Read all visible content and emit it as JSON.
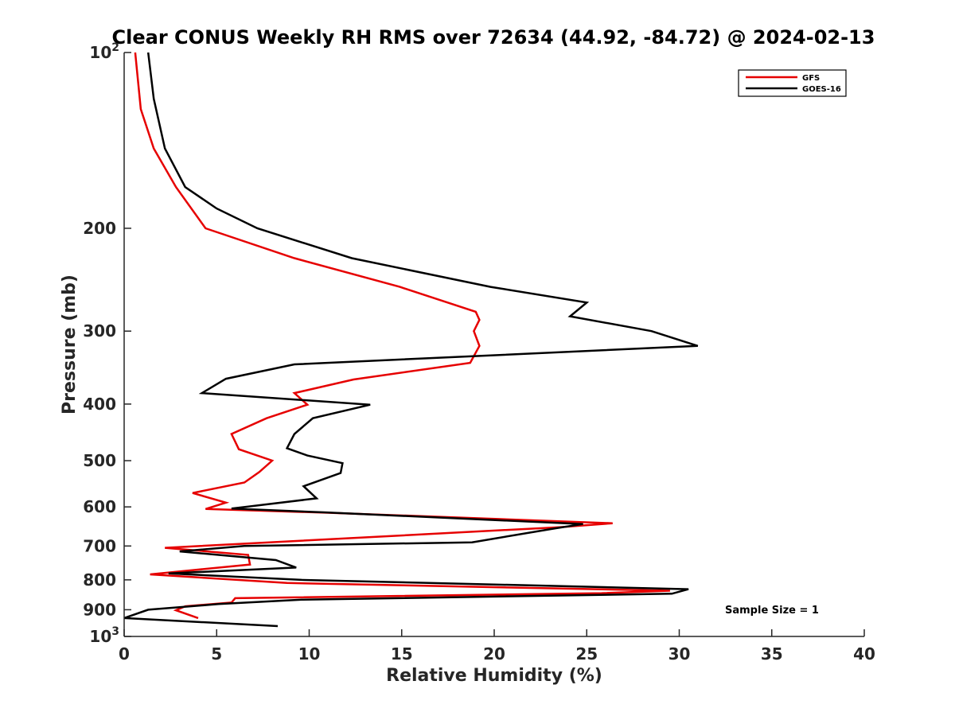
{
  "chart_data": {
    "type": "line",
    "title": "Clear CONUS Weekly RH RMS over 72634 (44.92, -84.72) @ 2024-02-13",
    "xlabel": "Relative Humidity (%)",
    "ylabel": "Pressure (mb)",
    "xlim": [
      0,
      40
    ],
    "ylim": [
      100,
      1000
    ],
    "yscale": "log",
    "y_reversed": true,
    "grid": false,
    "legend_position": "top-right",
    "x_ticks": [
      "0",
      "5",
      "10",
      "15",
      "20",
      "25",
      "30",
      "35",
      "40"
    ],
    "y_ticks": [
      {
        "value": 100,
        "base": "10",
        "exp": "2"
      },
      {
        "value": 200,
        "label": "200"
      },
      {
        "value": 300,
        "label": "300"
      },
      {
        "value": 400,
        "label": "400"
      },
      {
        "value": 500,
        "label": "500"
      },
      {
        "value": 600,
        "label": "600"
      },
      {
        "value": 700,
        "label": "700"
      },
      {
        "value": 800,
        "label": "800"
      },
      {
        "value": 900,
        "label": "900"
      },
      {
        "value": 1000,
        "base": "10",
        "exp": "3"
      }
    ],
    "annotation": "Sample Size = 1",
    "series": [
      {
        "name": "GFS",
        "color": "#e60000",
        "points": [
          [
            0.6,
            100
          ],
          [
            0.9,
            125
          ],
          [
            1.6,
            146
          ],
          [
            2.8,
            170
          ],
          [
            4.4,
            200
          ],
          [
            9.2,
            225
          ],
          [
            14.9,
            252
          ],
          [
            19.0,
            278
          ],
          [
            19.2,
            287
          ],
          [
            18.9,
            300
          ],
          [
            19.2,
            318
          ],
          [
            18.7,
            340
          ],
          [
            12.4,
            363
          ],
          [
            9.2,
            383
          ],
          [
            9.9,
            401
          ],
          [
            7.7,
            423
          ],
          [
            5.8,
            450
          ],
          [
            6.2,
            478
          ],
          [
            8.0,
            500
          ],
          [
            7.3,
            523
          ],
          [
            6.5,
            545
          ],
          [
            3.7,
            568
          ],
          [
            5.5,
            590
          ],
          [
            4.4,
            605
          ],
          [
            11.0,
            614
          ],
          [
            26.4,
            640
          ],
          [
            23.5,
            650
          ],
          [
            2.2,
            705
          ],
          [
            6.7,
            725
          ],
          [
            6.8,
            753
          ],
          [
            1.4,
            783
          ],
          [
            8.8,
            810
          ],
          [
            29.5,
            835
          ],
          [
            25.8,
            843
          ],
          [
            6.0,
            860
          ],
          [
            5.8,
            875
          ],
          [
            3.3,
            888
          ],
          [
            2.8,
            902
          ],
          [
            4.0,
            930
          ]
        ]
      },
      {
        "name": "GOES-16",
        "color": "#000000",
        "points": [
          [
            1.3,
            100
          ],
          [
            1.6,
            120
          ],
          [
            2.2,
            146
          ],
          [
            3.3,
            170
          ],
          [
            5.0,
            185
          ],
          [
            7.2,
            200
          ],
          [
            12.3,
            225
          ],
          [
            19.8,
            252
          ],
          [
            25.0,
            268
          ],
          [
            24.1,
            283
          ],
          [
            28.5,
            300
          ],
          [
            31.0,
            318
          ],
          [
            9.2,
            342
          ],
          [
            5.5,
            362
          ],
          [
            4.2,
            383
          ],
          [
            13.3,
            401
          ],
          [
            10.2,
            423
          ],
          [
            9.2,
            450
          ],
          [
            8.8,
            476
          ],
          [
            9.9,
            490
          ],
          [
            11.8,
            505
          ],
          [
            11.7,
            525
          ],
          [
            9.7,
            553
          ],
          [
            10.4,
            580
          ],
          [
            5.8,
            604
          ],
          [
            10.8,
            613
          ],
          [
            24.8,
            642
          ],
          [
            23.3,
            653
          ],
          [
            18.8,
            690
          ],
          [
            6.5,
            700
          ],
          [
            3.0,
            715
          ],
          [
            8.2,
            740
          ],
          [
            9.3,
            762
          ],
          [
            2.4,
            780
          ],
          [
            9.6,
            800
          ],
          [
            30.5,
            830
          ],
          [
            29.6,
            845
          ],
          [
            9.6,
            865
          ],
          [
            5.1,
            880
          ],
          [
            1.3,
            900
          ],
          [
            0.0,
            930
          ],
          [
            8.3,
            960
          ]
        ]
      }
    ]
  }
}
